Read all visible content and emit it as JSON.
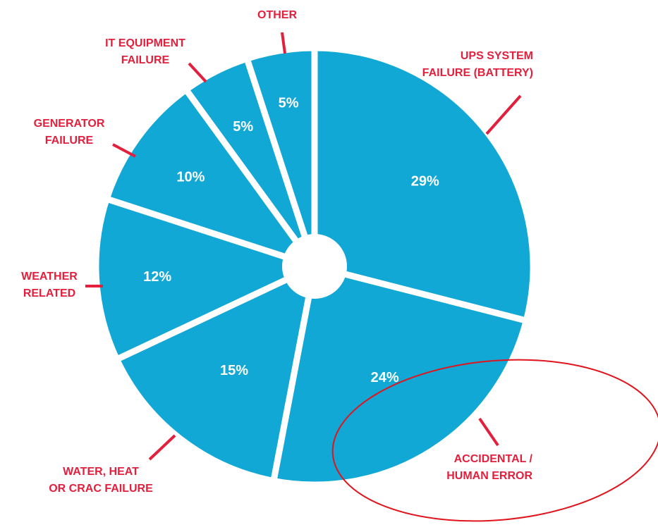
{
  "colors": {
    "slice": "#12a8d5",
    "separator": "#ffffff",
    "label": "#e2203d",
    "leader": "#e2203d",
    "highlight_circle": "#e0141c"
  },
  "chart_data": {
    "type": "pie",
    "style": "donut with small center hole and white separators",
    "categories": [
      "UPS SYSTEM FAILURE (BATTERY)",
      "ACCIDENTAL / HUMAN ERROR",
      "WATER, HEAT OR CRAC FAILURE",
      "WEATHER RELATED",
      "GENERATOR FAILURE",
      "IT EQUIPMENT FAILURE",
      "OTHER"
    ],
    "values": [
      29,
      24,
      15,
      12,
      10,
      5,
      5
    ],
    "value_labels": [
      "29%",
      "24%",
      "15%",
      "12%",
      "10%",
      "5%",
      "5%"
    ],
    "label_lines": [
      [
        "UPS SYSTEM",
        "FAILURE (BATTERY)"
      ],
      [
        "ACCIDENTAL /",
        "HUMAN ERROR"
      ],
      [
        "WATER, HEAT",
        "OR CRAC FAILURE"
      ],
      [
        "WEATHER",
        "RELATED"
      ],
      [
        "GENERATOR",
        "FAILURE"
      ],
      [
        "IT EQUIPMENT",
        "FAILURE"
      ],
      [
        "OTHER"
      ]
    ],
    "annotation": "hand-drawn red ellipse circling the ACCIDENTAL / HUMAN ERROR slice",
    "title": "",
    "legend": "none; category labels placed outside slices with red leader lines"
  }
}
